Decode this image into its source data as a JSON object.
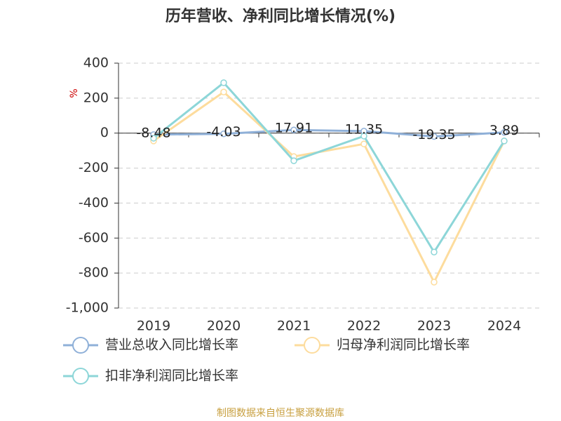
{
  "chart_data": {
    "type": "line",
    "title": "历年营收、净利同比增长情况(%)",
    "y_label": "%",
    "source": "制图数据来自恒生聚源数据库",
    "categories": [
      "2019",
      "2020",
      "2021",
      "2022",
      "2023",
      "2024"
    ],
    "series": [
      {
        "name": "营业总收入同比增长率",
        "color": "#8fb0d8",
        "values": [
          -8.48,
          -4.03,
          17.91,
          11.35,
          -19.35,
          3.89
        ],
        "show_labels": true
      },
      {
        "name": "归母净利润同比增长率",
        "color": "#fddc9d",
        "values": [
          -45,
          235,
          -134,
          -62,
          -852,
          -45
        ]
      },
      {
        "name": "扣非净利润同比增长率",
        "color": "#8dd6d8",
        "values": [
          -29,
          288,
          -158,
          -17,
          -680,
          -45
        ]
      }
    ],
    "ylim": [
      -1000,
      400
    ],
    "yticks": [
      {
        "value": -1000,
        "label": "-1,000"
      },
      -800,
      -600,
      -400,
      -200,
      0,
      200,
      400
    ],
    "grid": true
  }
}
